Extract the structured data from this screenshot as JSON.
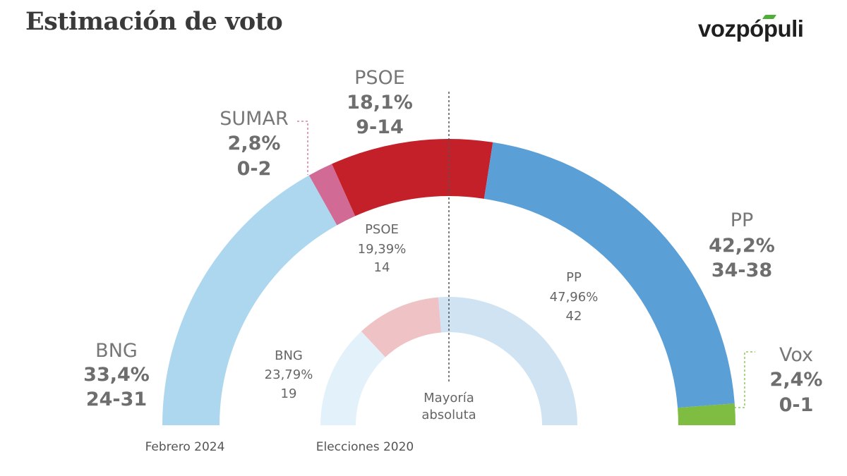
{
  "header": {
    "title": "Estimación de voto",
    "brand": "vozpópuli",
    "brand_color": "#4fae3a"
  },
  "chart_data": [
    {
      "type": "pie",
      "name": "Febrero 2024",
      "caption": "Febrero 2024",
      "slices": [
        {
          "party": "BNG",
          "pct": "33,4%",
          "value": 33.4,
          "seats": "24-31",
          "color": "#acd7ee"
        },
        {
          "party": "SUMAR",
          "pct": "2,8%",
          "value": 2.8,
          "seats": "0-2",
          "color": "#d16b96"
        },
        {
          "party": "PSOE",
          "pct": "18,1%",
          "value": 18.1,
          "seats": "9-14",
          "color": "#c4202a"
        },
        {
          "party": "PP",
          "pct": "42,2%",
          "value": 42.2,
          "seats": "34-38",
          "color": "#5a9fd6"
        },
        {
          "party": "Vox",
          "pct": "2,4%",
          "value": 2.4,
          "seats": "0-1",
          "color": "#7ebd41"
        }
      ]
    },
    {
      "type": "pie",
      "name": "Elecciones 2020",
      "caption": "Elecciones 2020",
      "slices": [
        {
          "party": "BNG",
          "pct": "23,79%",
          "value": 23.79,
          "seats": "19",
          "color": "#e3f1fb"
        },
        {
          "party": "PSOE",
          "pct": "19,39%",
          "value": 19.39,
          "seats": "14",
          "color": "#efc3c5"
        },
        {
          "party": "PP",
          "pct": "47,96%",
          "value": 47.96,
          "seats": "42",
          "color": "#cfe3f3"
        }
      ]
    }
  ],
  "majority": {
    "line1": "Mayoría",
    "line2": "absoluta"
  }
}
